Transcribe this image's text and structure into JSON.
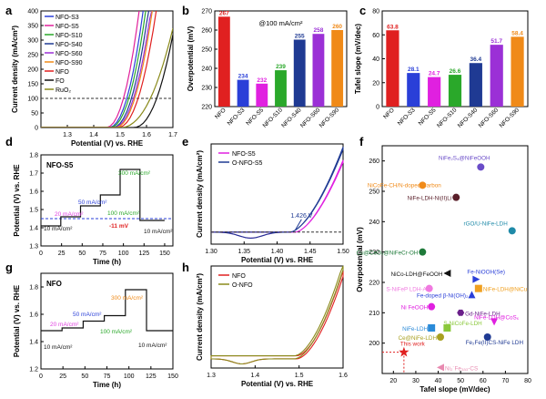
{
  "chart_data": [
    {
      "panel": "a",
      "type": "line",
      "ylabel": "Current density (mA/cm²)",
      "xlabel": "Potential (V) vs. RHE",
      "xlim": [
        1.2,
        1.7
      ],
      "ylim": [
        0,
        400
      ],
      "xticks": [
        "1.3",
        "1.4",
        "1.5",
        "1.6",
        "1.7"
      ],
      "yticks": [
        "0",
        "50",
        "100",
        "150",
        "200",
        "250",
        "300",
        "350",
        "400"
      ],
      "reference_line": 100,
      "series": [
        {
          "name": "NFO-S3",
          "color": "#2a3fd8",
          "onset": 1.455,
          "end": 1.59
        },
        {
          "name": "NFO-S5",
          "color": "#e0209a",
          "onset": 1.445,
          "end": 1.575
        },
        {
          "name": "NFO-S10",
          "color": "#2aa82a",
          "onset": 1.46,
          "end": 1.6
        },
        {
          "name": "NFO-S40",
          "color": "#1f3a93",
          "onset": 1.47,
          "end": 1.61
        },
        {
          "name": "NFO-S60",
          "color": "#9b30d6",
          "onset": 1.475,
          "end": 1.62
        },
        {
          "name": "NFO-S90",
          "color": "#f08a18",
          "onset": 1.48,
          "end": 1.625
        },
        {
          "name": "NFO",
          "color": "#e02020",
          "onset": 1.49,
          "end": 1.64
        },
        {
          "name": "FO",
          "color": "#111111",
          "onset": 1.55,
          "end": 1.72
        },
        {
          "name": "RuO₂",
          "color": "#8a8a1a",
          "onset": 1.5,
          "end": 1.72
        }
      ]
    },
    {
      "panel": "b",
      "type": "bar",
      "annotation": "@100 mA/cm²",
      "ylabel": "Overpotential (mV)",
      "ylim": [
        220,
        270
      ],
      "yticks": [
        "220",
        "230",
        "240",
        "250",
        "260",
        "270"
      ],
      "categories": [
        "NFO",
        "NFO-S3",
        "NFO-S5",
        "NFO-S10",
        "NFO-S40",
        "NFO-S60",
        "NFO-S90"
      ],
      "values": [
        267,
        234,
        232,
        239,
        255,
        258,
        260
      ],
      "colors": [
        "#e02020",
        "#2a3fd8",
        "#e020e0",
        "#2aa82a",
        "#1f3a93",
        "#9b30d6",
        "#f08a18"
      ]
    },
    {
      "panel": "c",
      "type": "bar",
      "ylabel": "Tafel slope (mV/dec)",
      "ylim": [
        0,
        80
      ],
      "yticks": [
        "0",
        "20",
        "40",
        "60",
        "80"
      ],
      "categories": [
        "NFO",
        "NFO-S3",
        "NFO-S5",
        "NFO-S10",
        "NFO-S40",
        "NFO-S60",
        "NFO-S90"
      ],
      "values": [
        63.8,
        28.1,
        24.7,
        26.6,
        36.4,
        51.7,
        58.4
      ],
      "colors": [
        "#e02020",
        "#2a3fd8",
        "#e020e0",
        "#2aa82a",
        "#1f3a93",
        "#9b30d6",
        "#f08a18"
      ]
    },
    {
      "panel": "d",
      "type": "line",
      "inset_label": "NFO-S5",
      "ylabel": "Potential (V) vs. RHE",
      "xlabel": "Time (h)",
      "xlim": [
        0,
        160
      ],
      "ylim": [
        1.3,
        1.8
      ],
      "xticks": [
        "0",
        "25",
        "50",
        "75",
        "100",
        "125",
        "150"
      ],
      "yticks": [
        "1.3",
        "1.4",
        "1.5",
        "1.6",
        "1.7",
        "1.8"
      ],
      "reference_line": 1.45,
      "series": [
        {
          "name": "",
          "color": "#111111",
          "x": [
            0,
            24,
            24,
            48,
            48,
            72,
            72,
            96,
            96,
            120,
            120,
            150
          ],
          "y": [
            1.41,
            1.41,
            1.46,
            1.46,
            1.52,
            1.52,
            1.58,
            1.58,
            1.72,
            1.72,
            1.44,
            1.44
          ]
        }
      ],
      "annotations": [
        {
          "text": "10 mA/cm²",
          "color": "#111111"
        },
        {
          "text": "20 mA/cm²",
          "color": "#e040e0"
        },
        {
          "text": "50 mA/cm²",
          "color": "#2a3fd8"
        },
        {
          "text": "100 mA/cm²",
          "color": "#2aa82a"
        },
        {
          "text": "300 mA/cm²",
          "color": "#2aa82a"
        },
        {
          "text": "10 mA/cm²",
          "color": "#111111"
        },
        {
          "text": "-11 mV",
          "color": "#e02020"
        }
      ]
    },
    {
      "panel": "e",
      "type": "line",
      "ylabel": "Current density (mA/cm²)",
      "xlabel": "Potential (V) vs. RHE",
      "xlim": [
        1.3,
        1.5
      ],
      "xticks": [
        "1.30",
        "1.35",
        "1.40",
        "1.45",
        "1.50"
      ],
      "series": [
        {
          "name": "NFO-S5",
          "color": "#e020e0"
        },
        {
          "name": "O-NFO-S5",
          "color": "#1f3a93"
        }
      ],
      "annotation": "1.426 V"
    },
    {
      "panel": "f",
      "type": "scatter",
      "xlabel": "Tafel slope (mV/dec)",
      "ylabel": "Overpotential (mV)",
      "xlim": [
        15,
        80
      ],
      "ylim": [
        190,
        265
      ],
      "xticks": [
        "20",
        "30",
        "40",
        "50",
        "60",
        "70",
        "80"
      ],
      "yticks": [
        "200",
        "210",
        "220",
        "230",
        "240",
        "250",
        "260"
      ],
      "points": [
        {
          "label": "NiFe₂S₄@NiFeOOH",
          "x": 59,
          "y": 258,
          "color": "#6a4cc8",
          "marker": "circle"
        },
        {
          "label": "NiCoFe-CH/N-doped Carbon",
          "x": 33,
          "y": 252,
          "color": "#f08a18",
          "marker": "circle"
        },
        {
          "label": "NiFe-LDH-Ni(II)Li",
          "x": 48,
          "y": 248,
          "color": "#5a1f2a",
          "marker": "circle"
        },
        {
          "label": "rGO/U-NiFe-LDH",
          "x": 73,
          "y": 237,
          "color": "#1f8aa8",
          "marker": "circle"
        },
        {
          "label": "Cu@CeO₂@NiFeCr-OH",
          "x": 33,
          "y": 230,
          "color": "#1f7a3a",
          "marker": "circle"
        },
        {
          "label": "NiCo-LDH@FeOOH",
          "x": 44,
          "y": 223,
          "color": "#111111",
          "marker": "triangle-left"
        },
        {
          "label": "Fe-NiOOH(Se)",
          "x": 57,
          "y": 221,
          "color": "#2a3fd8",
          "marker": "triangle-right"
        },
        {
          "label": "NiFe-LDH@NiCu",
          "x": 58,
          "y": 218,
          "color": "#f0a020",
          "marker": "square"
        },
        {
          "label": "S-NiFeP LDH-A",
          "x": 36,
          "y": 218,
          "color": "#f07ae0",
          "marker": "circle"
        },
        {
          "label": "Fe-doped β-Ni(OH)₂",
          "x": 55,
          "y": 216,
          "color": "#2a3fd8",
          "marker": "triangle-up"
        },
        {
          "label": "Ni FeOOH",
          "x": 37,
          "y": 212,
          "color": "#e020e0",
          "marker": "circle"
        },
        {
          "label": "Gd-NiFe-LDH",
          "x": 50,
          "y": 210,
          "color": "#6a1f8a",
          "marker": "hexagon"
        },
        {
          "label": "NiFe-LDH@CoSₓ",
          "x": 65,
          "y": 207,
          "color": "#e020e0",
          "marker": "triangle-down"
        },
        {
          "label": "NiFe-LDH",
          "x": 37,
          "y": 205,
          "color": "#2a8ad8",
          "marker": "square"
        },
        {
          "label": "S-NiCoFe-LDH",
          "x": 44,
          "y": 205,
          "color": "#8ac83a",
          "marker": "square"
        },
        {
          "label": "Ce@NiFe-LDH",
          "x": 41,
          "y": 202,
          "color": "#a8a020",
          "marker": "circle"
        },
        {
          "label": "Fe₂Fe(II)CS-NiFe LDH",
          "x": 62,
          "y": 202,
          "color": "#1f3a93",
          "marker": "circle"
        },
        {
          "label": "Ni₂˙Fe₃ₐ₃-CS",
          "x": 41,
          "y": 192,
          "color": "#e88ab0",
          "marker": "triangle-left"
        },
        {
          "label": "This work",
          "x": 24.7,
          "y": 197,
          "color": "#e02020",
          "marker": "star"
        }
      ]
    },
    {
      "panel": "g",
      "type": "line",
      "inset_label": "NFO",
      "ylabel": "Potential (V) vs. RHE",
      "xlabel": "Time (h)",
      "xlim": [
        0,
        150
      ],
      "ylim": [
        1.2,
        1.9
      ],
      "xticks": [
        "0",
        "25",
        "50",
        "75",
        "100",
        "125",
        "150"
      ],
      "yticks": [
        "1.2",
        "1.4",
        "1.6",
        "1.8"
      ],
      "series": [
        {
          "name": "",
          "color": "#111111",
          "x": [
            0,
            24,
            24,
            48,
            48,
            72,
            72,
            96,
            96,
            120,
            120,
            150
          ],
          "y": [
            1.48,
            1.48,
            1.5,
            1.5,
            1.55,
            1.55,
            1.59,
            1.59,
            1.78,
            1.78,
            1.48,
            1.48
          ]
        }
      ],
      "annotations": [
        {
          "text": "10 mA/cm²",
          "color": "#111111"
        },
        {
          "text": "20 mA/cm²",
          "color": "#e040e0"
        },
        {
          "text": "50 mA/cm²",
          "color": "#2a3fd8"
        },
        {
          "text": "100 mA/cm²",
          "color": "#2aa82a"
        },
        {
          "text": "300 mA/cm²",
          "color": "#f08a18"
        },
        {
          "text": "10 mA/cm²",
          "color": "#111111"
        }
      ]
    },
    {
      "panel": "h",
      "type": "line",
      "ylabel": "Current density (mA/cm²)",
      "xlabel": "Potential (V) vs. RHE",
      "xlim": [
        1.3,
        1.6
      ],
      "xticks": [
        "1.3",
        "1.4",
        "1.5",
        "1.6"
      ],
      "series": [
        {
          "name": "NFO",
          "color": "#e02020"
        },
        {
          "name": "O-NFO",
          "color": "#8a8a1a"
        }
      ]
    }
  ]
}
